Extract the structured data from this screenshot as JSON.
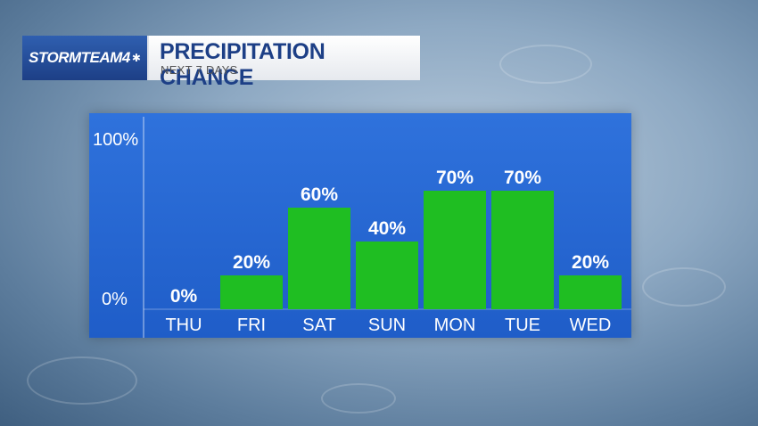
{
  "brand": {
    "name": "STORMTEAM4",
    "logo_icon": "peacock-icon"
  },
  "header": {
    "title": "PRECIPITATION CHANCE",
    "subtitle": "NEXT 7 DAYS"
  },
  "chart_data": {
    "type": "bar",
    "title": "PRECIPITATION CHANCE",
    "subtitle": "NEXT 7 DAYS",
    "categories": [
      "THU",
      "FRI",
      "SAT",
      "SUN",
      "MON",
      "TUE",
      "WED"
    ],
    "values": [
      0,
      20,
      60,
      40,
      70,
      70,
      20
    ],
    "value_labels": [
      "0%",
      "20%",
      "60%",
      "40%",
      "70%",
      "70%",
      "20%"
    ],
    "ylim": [
      0,
      100
    ],
    "yticks": [
      "0%",
      "100%"
    ],
    "grid": false,
    "colors": {
      "bar": "#1fbe22",
      "panel": "#2a6ad6",
      "text": "#ffffff"
    }
  }
}
